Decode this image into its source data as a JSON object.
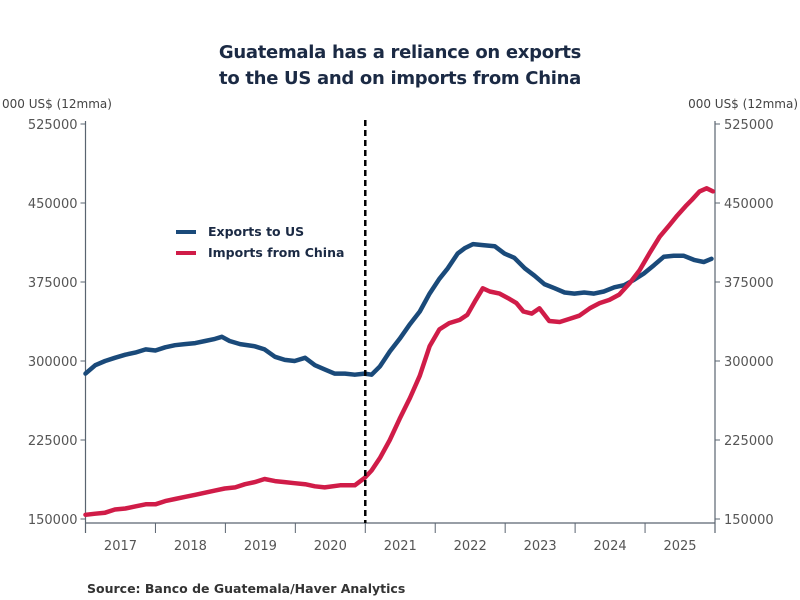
{
  "chart_data": {
    "type": "line",
    "title_lines": [
      "Guatemala has a reliance on exports",
      "to the US and on imports from China"
    ],
    "ylabel_left": "000 US$ (12mma)",
    "ylabel_right": "000 US$ (12mma)",
    "ylim": [
      150000,
      525000
    ],
    "yticks": [
      150000,
      225000,
      300000,
      375000,
      450000,
      525000
    ],
    "ytick_labels": [
      "150000",
      "225000",
      "300000",
      "375000",
      "450000",
      "525000"
    ],
    "xlim": [
      2017.0,
      2026.0
    ],
    "xtick_labels": [
      "2017",
      "2018",
      "2019",
      "2020",
      "2021",
      "2022",
      "2023",
      "2024",
      "2025"
    ],
    "grid": false,
    "legend_position": "upper-left",
    "vline": {
      "x": 2021.0,
      "style": "dashed",
      "color": "#000000"
    },
    "series": [
      {
        "name": "Exports to US",
        "color": "#1a4a7a",
        "x": [
          2017.0,
          2017.14,
          2017.28,
          2017.42,
          2017.57,
          2017.71,
          2017.86,
          2018.0,
          2018.14,
          2018.28,
          2018.42,
          2018.57,
          2018.71,
          2018.85,
          2018.95,
          2019.06,
          2019.21,
          2019.42,
          2019.56,
          2019.71,
          2019.85,
          2019.99,
          2020.14,
          2020.28,
          2020.42,
          2020.56,
          2020.71,
          2020.85,
          2020.99,
          2021.09,
          2021.21,
          2021.35,
          2021.49,
          2021.64,
          2021.78,
          2021.92,
          2022.06,
          2022.18,
          2022.32,
          2022.42,
          2022.54,
          2022.68,
          2022.85,
          2022.99,
          2023.13,
          2023.28,
          2023.42,
          2023.56,
          2023.71,
          2023.85,
          2023.99,
          2024.13,
          2024.27,
          2024.41,
          2024.56,
          2024.7,
          2024.84,
          2024.98,
          2025.13,
          2025.27,
          2025.41,
          2025.55,
          2025.7,
          2025.84,
          2025.95
        ],
        "values": [
          288000,
          296000,
          300000,
          303000,
          306000,
          308000,
          311000,
          310000,
          313000,
          315000,
          316000,
          317000,
          319000,
          321000,
          323000,
          319000,
          316000,
          314000,
          311000,
          304000,
          301000,
          300000,
          303000,
          296000,
          292000,
          288000,
          288000,
          287000,
          288000,
          287000,
          295000,
          309000,
          321000,
          335000,
          347000,
          364000,
          378000,
          388000,
          402000,
          407000,
          411000,
          410000,
          409000,
          402000,
          398000,
          388000,
          381000,
          373000,
          369000,
          365000,
          364000,
          365000,
          364000,
          366000,
          370000,
          372000,
          377000,
          383000,
          391000,
          399000,
          400000,
          400000,
          396000,
          394000,
          397000
        ]
      },
      {
        "name": "Imports from China",
        "color": "#d01c48",
        "x": [
          2017.0,
          2017.14,
          2017.28,
          2017.42,
          2017.57,
          2017.71,
          2017.86,
          2018.0,
          2018.14,
          2018.28,
          2018.42,
          2018.57,
          2018.71,
          2018.85,
          2018.99,
          2019.14,
          2019.28,
          2019.42,
          2019.56,
          2019.71,
          2019.85,
          2019.99,
          2020.14,
          2020.28,
          2020.42,
          2020.64,
          2020.85,
          2020.99,
          2021.09,
          2021.21,
          2021.35,
          2021.49,
          2021.64,
          2021.78,
          2021.92,
          2022.06,
          2022.2,
          2022.35,
          2022.46,
          2022.58,
          2022.68,
          2022.78,
          2022.92,
          2023.06,
          2023.16,
          2023.26,
          2023.38,
          2023.49,
          2023.63,
          2023.78,
          2023.92,
          2024.06,
          2024.21,
          2024.35,
          2024.49,
          2024.63,
          2024.78,
          2024.92,
          2025.06,
          2025.21,
          2025.35,
          2025.46,
          2025.58,
          2025.67,
          2025.78,
          2025.88,
          2025.97
        ],
        "values": [
          154000,
          155000,
          156000,
          159000,
          160000,
          162000,
          164000,
          164000,
          167000,
          169000,
          171000,
          173000,
          175000,
          177000,
          179000,
          180000,
          183000,
          185000,
          188000,
          186000,
          185000,
          184000,
          183000,
          181000,
          180000,
          182000,
          182000,
          189000,
          196000,
          208000,
          225000,
          245000,
          265000,
          286000,
          314000,
          330000,
          336000,
          339000,
          344000,
          358000,
          369000,
          366000,
          364000,
          359000,
          355000,
          347000,
          345000,
          350000,
          338000,
          337000,
          340000,
          343000,
          350000,
          355000,
          358000,
          363000,
          374000,
          386000,
          402000,
          418000,
          429000,
          438000,
          447000,
          453000,
          461000,
          464000,
          461000
        ]
      }
    ]
  },
  "source_text": "Source:  Banco de Guatemala/Haver Analytics"
}
